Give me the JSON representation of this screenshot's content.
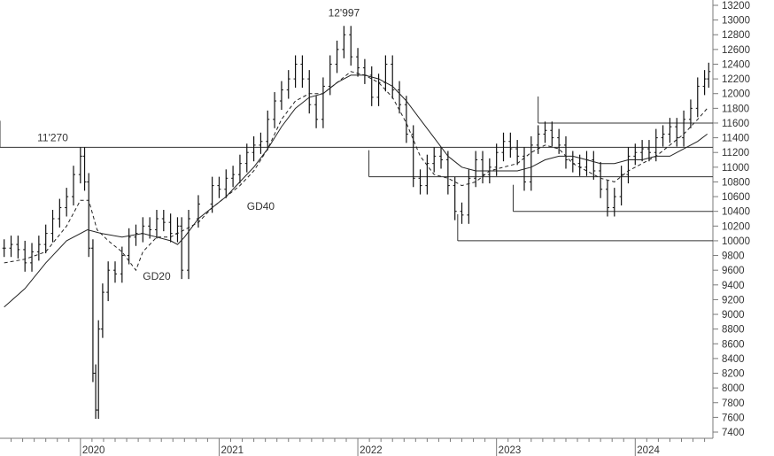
{
  "chart_data": {
    "type": "line",
    "title": "",
    "xlabel": "",
    "ylabel": "",
    "ylim": [
      7400,
      13200
    ],
    "y_axis_side": "right",
    "y_ticks": [
      7400,
      7600,
      7800,
      8000,
      8200,
      8400,
      8600,
      8800,
      9000,
      9200,
      9400,
      9600,
      9800,
      10000,
      10200,
      10400,
      10600,
      10800,
      11000,
      11200,
      11400,
      11600,
      11800,
      12000,
      12200,
      12400,
      12600,
      12800,
      13000,
      13200
    ],
    "x_ticks": [
      {
        "label": "2020",
        "x": 2020.0
      },
      {
        "label": "2021",
        "x": 2021.0
      },
      {
        "label": "2022",
        "x": 2022.0
      },
      {
        "label": "2023",
        "x": 2023.0
      },
      {
        "label": "2024",
        "x": 2024.0
      }
    ],
    "xlim": [
      2019.42,
      2024.56
    ],
    "grid": false,
    "series": [
      {
        "name": "",
        "style": "weekly-bars",
        "values": [
          [
            2019.45,
            9900
          ],
          [
            2019.5,
            9950
          ],
          [
            2019.55,
            9880
          ],
          [
            2019.6,
            9700
          ],
          [
            2019.65,
            9850
          ],
          [
            2019.7,
            9950
          ],
          [
            2019.75,
            10100
          ],
          [
            2019.8,
            10300
          ],
          [
            2019.85,
            10450
          ],
          [
            2019.9,
            10600
          ],
          [
            2019.95,
            10900
          ],
          [
            2020.0,
            11150
          ],
          [
            2020.03,
            10800
          ],
          [
            2020.06,
            9900
          ],
          [
            2020.09,
            8200
          ],
          [
            2020.11,
            7700
          ],
          [
            2020.13,
            8800
          ],
          [
            2020.16,
            9300
          ],
          [
            2020.2,
            9600
          ],
          [
            2020.25,
            9550
          ],
          [
            2020.3,
            9800
          ],
          [
            2020.35,
            10050
          ],
          [
            2020.4,
            10100
          ],
          [
            2020.45,
            10200
          ],
          [
            2020.5,
            10150
          ],
          [
            2020.55,
            10300
          ],
          [
            2020.6,
            10250
          ],
          [
            2020.65,
            10100
          ],
          [
            2020.7,
            10200
          ],
          [
            2020.73,
            9600
          ],
          [
            2020.78,
            10300
          ],
          [
            2020.85,
            10500
          ],
          [
            2020.95,
            10750
          ],
          [
            2021.0,
            10700
          ],
          [
            2021.05,
            10850
          ],
          [
            2021.1,
            10900
          ],
          [
            2021.15,
            11050
          ],
          [
            2021.2,
            11200
          ],
          [
            2021.25,
            11300
          ],
          [
            2021.3,
            11350
          ],
          [
            2021.35,
            11650
          ],
          [
            2021.4,
            11900
          ],
          [
            2021.45,
            12050
          ],
          [
            2021.5,
            12200
          ],
          [
            2021.55,
            12400
          ],
          [
            2021.6,
            12200
          ],
          [
            2021.65,
            11850
          ],
          [
            2021.7,
            11650
          ],
          [
            2021.75,
            12100
          ],
          [
            2021.8,
            12400
          ],
          [
            2021.85,
            12600
          ],
          [
            2021.9,
            12800
          ],
          [
            2021.95,
            12500
          ],
          [
            2022.0,
            12350
          ],
          [
            2022.05,
            12250
          ],
          [
            2022.1,
            11950
          ],
          [
            2022.15,
            12150
          ],
          [
            2022.2,
            12400
          ],
          [
            2022.25,
            12050
          ],
          [
            2022.3,
            11850
          ],
          [
            2022.35,
            11450
          ],
          [
            2022.4,
            10850
          ],
          [
            2022.45,
            10750
          ],
          [
            2022.5,
            11050
          ],
          [
            2022.55,
            11150
          ],
          [
            2022.6,
            11100
          ],
          [
            2022.65,
            10750
          ],
          [
            2022.7,
            10400
          ],
          [
            2022.75,
            10350
          ],
          [
            2022.8,
            10850
          ],
          [
            2022.85,
            11100
          ],
          [
            2022.9,
            10900
          ],
          [
            2022.95,
            11000
          ],
          [
            2023.0,
            11200
          ],
          [
            2023.05,
            11350
          ],
          [
            2023.1,
            11250
          ],
          [
            2023.15,
            11150
          ],
          [
            2023.2,
            10800
          ],
          [
            2023.25,
            11300
          ],
          [
            2023.3,
            11450
          ],
          [
            2023.35,
            11500
          ],
          [
            2023.4,
            11400
          ],
          [
            2023.45,
            11300
          ],
          [
            2023.5,
            11100
          ],
          [
            2023.55,
            11050
          ],
          [
            2023.6,
            11000
          ],
          [
            2023.65,
            11100
          ],
          [
            2023.7,
            10950
          ],
          [
            2023.75,
            10700
          ],
          [
            2023.8,
            10450
          ],
          [
            2023.85,
            10600
          ],
          [
            2023.9,
            10900
          ],
          [
            2023.95,
            11150
          ],
          [
            2024.0,
            11200
          ],
          [
            2024.05,
            11250
          ],
          [
            2024.1,
            11200
          ],
          [
            2024.15,
            11400
          ],
          [
            2024.2,
            11450
          ],
          [
            2024.25,
            11550
          ],
          [
            2024.3,
            11400
          ],
          [
            2024.35,
            11650
          ],
          [
            2024.4,
            11800
          ],
          [
            2024.45,
            12100
          ],
          [
            2024.5,
            12200
          ],
          [
            2024.53,
            12300
          ]
        ]
      },
      {
        "name": "GD20",
        "style": "dashed",
        "values": [
          [
            2019.45,
            9700
          ],
          [
            2019.6,
            9750
          ],
          [
            2019.75,
            9850
          ],
          [
            2019.9,
            10200
          ],
          [
            2020.0,
            10550
          ],
          [
            2020.06,
            10550
          ],
          [
            2020.12,
            10150
          ],
          [
            2020.2,
            10000
          ],
          [
            2020.3,
            9850
          ],
          [
            2020.36,
            9700
          ],
          [
            2020.4,
            9600
          ],
          [
            2020.45,
            9850
          ],
          [
            2020.55,
            10050
          ],
          [
            2020.65,
            10050
          ],
          [
            2020.75,
            10150
          ],
          [
            2020.85,
            10250
          ],
          [
            2020.95,
            10450
          ],
          [
            2021.05,
            10600
          ],
          [
            2021.15,
            10750
          ],
          [
            2021.25,
            10950
          ],
          [
            2021.35,
            11250
          ],
          [
            2021.45,
            11650
          ],
          [
            2021.55,
            11900
          ],
          [
            2021.65,
            12000
          ],
          [
            2021.75,
            12000
          ],
          [
            2021.85,
            12150
          ],
          [
            2021.95,
            12300
          ],
          [
            2022.05,
            12250
          ],
          [
            2022.15,
            12150
          ],
          [
            2022.25,
            11950
          ],
          [
            2022.35,
            11600
          ],
          [
            2022.45,
            11150
          ],
          [
            2022.55,
            10900
          ],
          [
            2022.65,
            10850
          ],
          [
            2022.75,
            10750
          ],
          [
            2022.85,
            10800
          ],
          [
            2022.95,
            10950
          ],
          [
            2023.05,
            11000
          ],
          [
            2023.15,
            11050
          ],
          [
            2023.25,
            11200
          ],
          [
            2023.35,
            11300
          ],
          [
            2023.45,
            11250
          ],
          [
            2023.55,
            11050
          ],
          [
            2023.65,
            10950
          ],
          [
            2023.75,
            10850
          ],
          [
            2023.85,
            10800
          ],
          [
            2023.95,
            10950
          ],
          [
            2024.05,
            11050
          ],
          [
            2024.15,
            11150
          ],
          [
            2024.25,
            11300
          ],
          [
            2024.35,
            11450
          ],
          [
            2024.45,
            11650
          ],
          [
            2024.52,
            11800
          ]
        ]
      },
      {
        "name": "GD40",
        "style": "solid",
        "values": [
          [
            2019.45,
            9100
          ],
          [
            2019.6,
            9350
          ],
          [
            2019.75,
            9700
          ],
          [
            2019.9,
            10000
          ],
          [
            2020.05,
            10150
          ],
          [
            2020.15,
            10100
          ],
          [
            2020.3,
            10050
          ],
          [
            2020.45,
            10100
          ],
          [
            2020.55,
            10050
          ],
          [
            2020.65,
            10000
          ],
          [
            2020.7,
            9950
          ],
          [
            2020.75,
            10050
          ],
          [
            2020.85,
            10300
          ],
          [
            2020.95,
            10450
          ],
          [
            2021.05,
            10600
          ],
          [
            2021.15,
            10800
          ],
          [
            2021.25,
            11000
          ],
          [
            2021.35,
            11250
          ],
          [
            2021.45,
            11550
          ],
          [
            2021.55,
            11800
          ],
          [
            2021.65,
            11950
          ],
          [
            2021.75,
            12000
          ],
          [
            2021.85,
            12150
          ],
          [
            2021.95,
            12250
          ],
          [
            2022.05,
            12250
          ],
          [
            2022.15,
            12200
          ],
          [
            2022.25,
            12100
          ],
          [
            2022.35,
            11900
          ],
          [
            2022.45,
            11650
          ],
          [
            2022.55,
            11400
          ],
          [
            2022.65,
            11150
          ],
          [
            2022.75,
            11000
          ],
          [
            2022.85,
            10950
          ],
          [
            2022.95,
            10950
          ],
          [
            2023.05,
            10950
          ],
          [
            2023.15,
            10950
          ],
          [
            2023.25,
            11000
          ],
          [
            2023.35,
            11100
          ],
          [
            2023.45,
            11150
          ],
          [
            2023.55,
            11150
          ],
          [
            2023.65,
            11100
          ],
          [
            2023.75,
            11050
          ],
          [
            2023.85,
            11050
          ],
          [
            2023.95,
            11100
          ],
          [
            2024.05,
            11100
          ],
          [
            2024.15,
            11150
          ],
          [
            2024.25,
            11150
          ],
          [
            2024.35,
            11250
          ],
          [
            2024.45,
            11350
          ],
          [
            2024.52,
            11450
          ]
        ]
      }
    ],
    "horizontal_levels": [
      {
        "y": 11270,
        "x_start": 2019.42,
        "x_end": 2024.56
      },
      {
        "y": 10870,
        "x_start": 2022.08,
        "x_end": 2024.56
      },
      {
        "y": 10400,
        "x_start": 2023.12,
        "x_end": 2024.56
      },
      {
        "y": 10000,
        "x_start": 2022.72,
        "x_end": 2024.56
      },
      {
        "y": 11600,
        "x_start": 2023.3,
        "x_end": 2024.56
      }
    ],
    "annotations": [
      {
        "text": "11'270",
        "x": 2019.8,
        "y": 11350
      },
      {
        "text": "12'997",
        "x": 2021.9,
        "y": 13050
      },
      {
        "text": "GD40",
        "x": 2021.3,
        "y": 10420
      },
      {
        "text": "GD20",
        "x": 2020.55,
        "y": 9470
      }
    ]
  }
}
